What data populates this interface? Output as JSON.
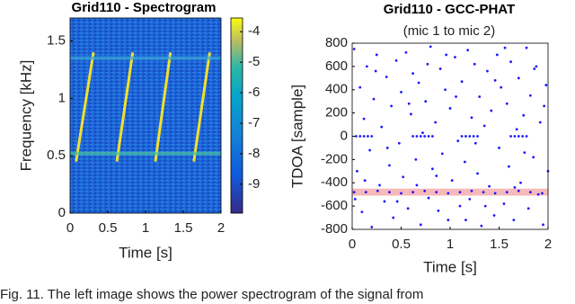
{
  "chart_data": [
    {
      "type": "spectrogram",
      "title": "Grid110 - Spectrogram",
      "xlabel": "Time [s]",
      "ylabel": "Frequency [kHz]",
      "xlim": [
        0,
        2
      ],
      "xticks": [
        0,
        0.5,
        1,
        1.5,
        2
      ],
      "ylim": [
        0,
        1.7
      ],
      "yticks": [
        0,
        0.5,
        1,
        1.5
      ],
      "clim": [
        -9.95,
        -3.55
      ],
      "cticks": [
        -4,
        -5,
        -6,
        -7,
        -8,
        -9
      ],
      "series": [
        {
          "color": "#f2e02c",
          "x": [
            0.08,
            0.31
          ],
          "values": [
            0.45,
            1.4
          ]
        },
        {
          "color": "#f2e02c",
          "x": [
            0.62,
            0.83
          ],
          "values": [
            0.45,
            1.4
          ]
        },
        {
          "color": "#f2e02c",
          "x": [
            1.13,
            1.33
          ],
          "values": [
            0.45,
            1.4
          ]
        },
        {
          "color": "#f2e02c",
          "x": [
            1.64,
            1.85
          ],
          "values": [
            0.45,
            1.4
          ]
        },
        {
          "color": "#4cc6a0",
          "x": [
            0,
            2
          ],
          "values": [
            0.52,
            0.52
          ]
        },
        {
          "color": "#3aa6d8",
          "x": [
            0,
            2
          ],
          "values": [
            1.35,
            1.35
          ]
        }
      ]
    },
    {
      "type": "scatter",
      "title": "Grid110 - GCC-PHAT",
      "subtitle": "(mic 1 to mic 2)",
      "xlabel": "Time [s]",
      "ylabel": "TDOA [sample]",
      "xlim": [
        0,
        2
      ],
      "xticks": [
        0,
        0.5,
        1,
        1.5,
        2
      ],
      "ylim": [
        -800,
        800
      ],
      "yticks": [
        -800,
        -600,
        -400,
        -200,
        0,
        200,
        400,
        600,
        800
      ],
      "band": [
        -510,
        -450
      ],
      "band_color": "#f08080",
      "color": "#1a1aff",
      "x": [
        0.02,
        0.05,
        0.08,
        0.1,
        0.12,
        0.15,
        0.18,
        0.2,
        0.22,
        0.25,
        0.28,
        0.3,
        0.33,
        0.35,
        0.38,
        0.4,
        0.42,
        0.45,
        0.48,
        0.5,
        0.52,
        0.55,
        0.57,
        0.6,
        0.62,
        0.65,
        0.68,
        0.7,
        0.72,
        0.75,
        0.78,
        0.8,
        0.82,
        0.85,
        0.88,
        0.9,
        0.92,
        0.95,
        0.98,
        1.0,
        1.02,
        1.05,
        1.08,
        1.1,
        1.12,
        1.15,
        1.18,
        1.2,
        1.22,
        1.25,
        1.28,
        1.3,
        1.32,
        1.35,
        1.38,
        1.4,
        1.42,
        1.45,
        1.48,
        1.5,
        1.52,
        1.55,
        1.58,
        1.6,
        1.62,
        1.65,
        1.68,
        1.7,
        1.72,
        1.75,
        1.78,
        1.8,
        1.82,
        1.85,
        1.88,
        1.9,
        1.92,
        1.95,
        1.98,
        2.0,
        0.03,
        0.13,
        0.24,
        0.36,
        0.46,
        0.58,
        0.66,
        0.77,
        0.86,
        0.96,
        1.06,
        1.16,
        1.26,
        1.36,
        1.46,
        1.56,
        1.66,
        1.76,
        1.86,
        1.96,
        0.04,
        0.08,
        0.12,
        0.16,
        0.2,
        0.62,
        0.66,
        0.7,
        0.74,
        0.78,
        0.82,
        1.12,
        1.16,
        1.2,
        1.24,
        1.28,
        1.62,
        1.66,
        1.7,
        1.74,
        1.78,
        0.02,
        0.14,
        0.26,
        0.38,
        0.5,
        0.62,
        0.74,
        0.86,
        0.98,
        1.1,
        1.22,
        1.34,
        1.46,
        1.58,
        1.7,
        1.82,
        1.94
      ],
      "values": [
        750,
        -300,
        420,
        -650,
        150,
        600,
        -120,
        -780,
        320,
        700,
        -420,
        80,
        -560,
        510,
        -250,
        260,
        -700,
        650,
        -60,
        380,
        -350,
        720,
        -620,
        190,
        540,
        -200,
        460,
        -760,
        30,
        300,
        -530,
        770,
        -280,
        120,
        -640,
        580,
        -150,
        400,
        -720,
        240,
        -380,
        680,
        -40,
        -600,
        470,
        -220,
        740,
        -540,
        160,
        620,
        -320,
        340,
        -770,
        90,
        560,
        -430,
        220,
        -680,
        700,
        -100,
        420,
        -580,
        280,
        -260,
        640,
        -720,
        60,
        500,
        -400,
        180,
        760,
        -620,
        350,
        -180,
        600,
        -500,
        120,
        -760,
        440,
        -300,
        -540,
        -380,
        560,
        -100,
        -560,
        280,
        -420,
        620,
        -340,
        700,
        340,
        -720,
        -60,
        -600,
        480,
        760,
        -440,
        -140,
        580,
        260,
        0,
        0,
        0,
        0,
        0,
        0,
        0,
        0,
        0,
        0,
        0,
        0,
        0,
        0,
        0,
        0,
        0,
        0,
        0,
        0,
        0,
        -480,
        -480,
        -470,
        -480,
        -490,
        -480,
        -470,
        -480,
        -490,
        -480,
        -470,
        -480,
        -490,
        -480,
        -470,
        -480,
        -490
      ]
    }
  ],
  "caption": "Fig. 11.   The left image shows the power spectrogram of the signal from"
}
